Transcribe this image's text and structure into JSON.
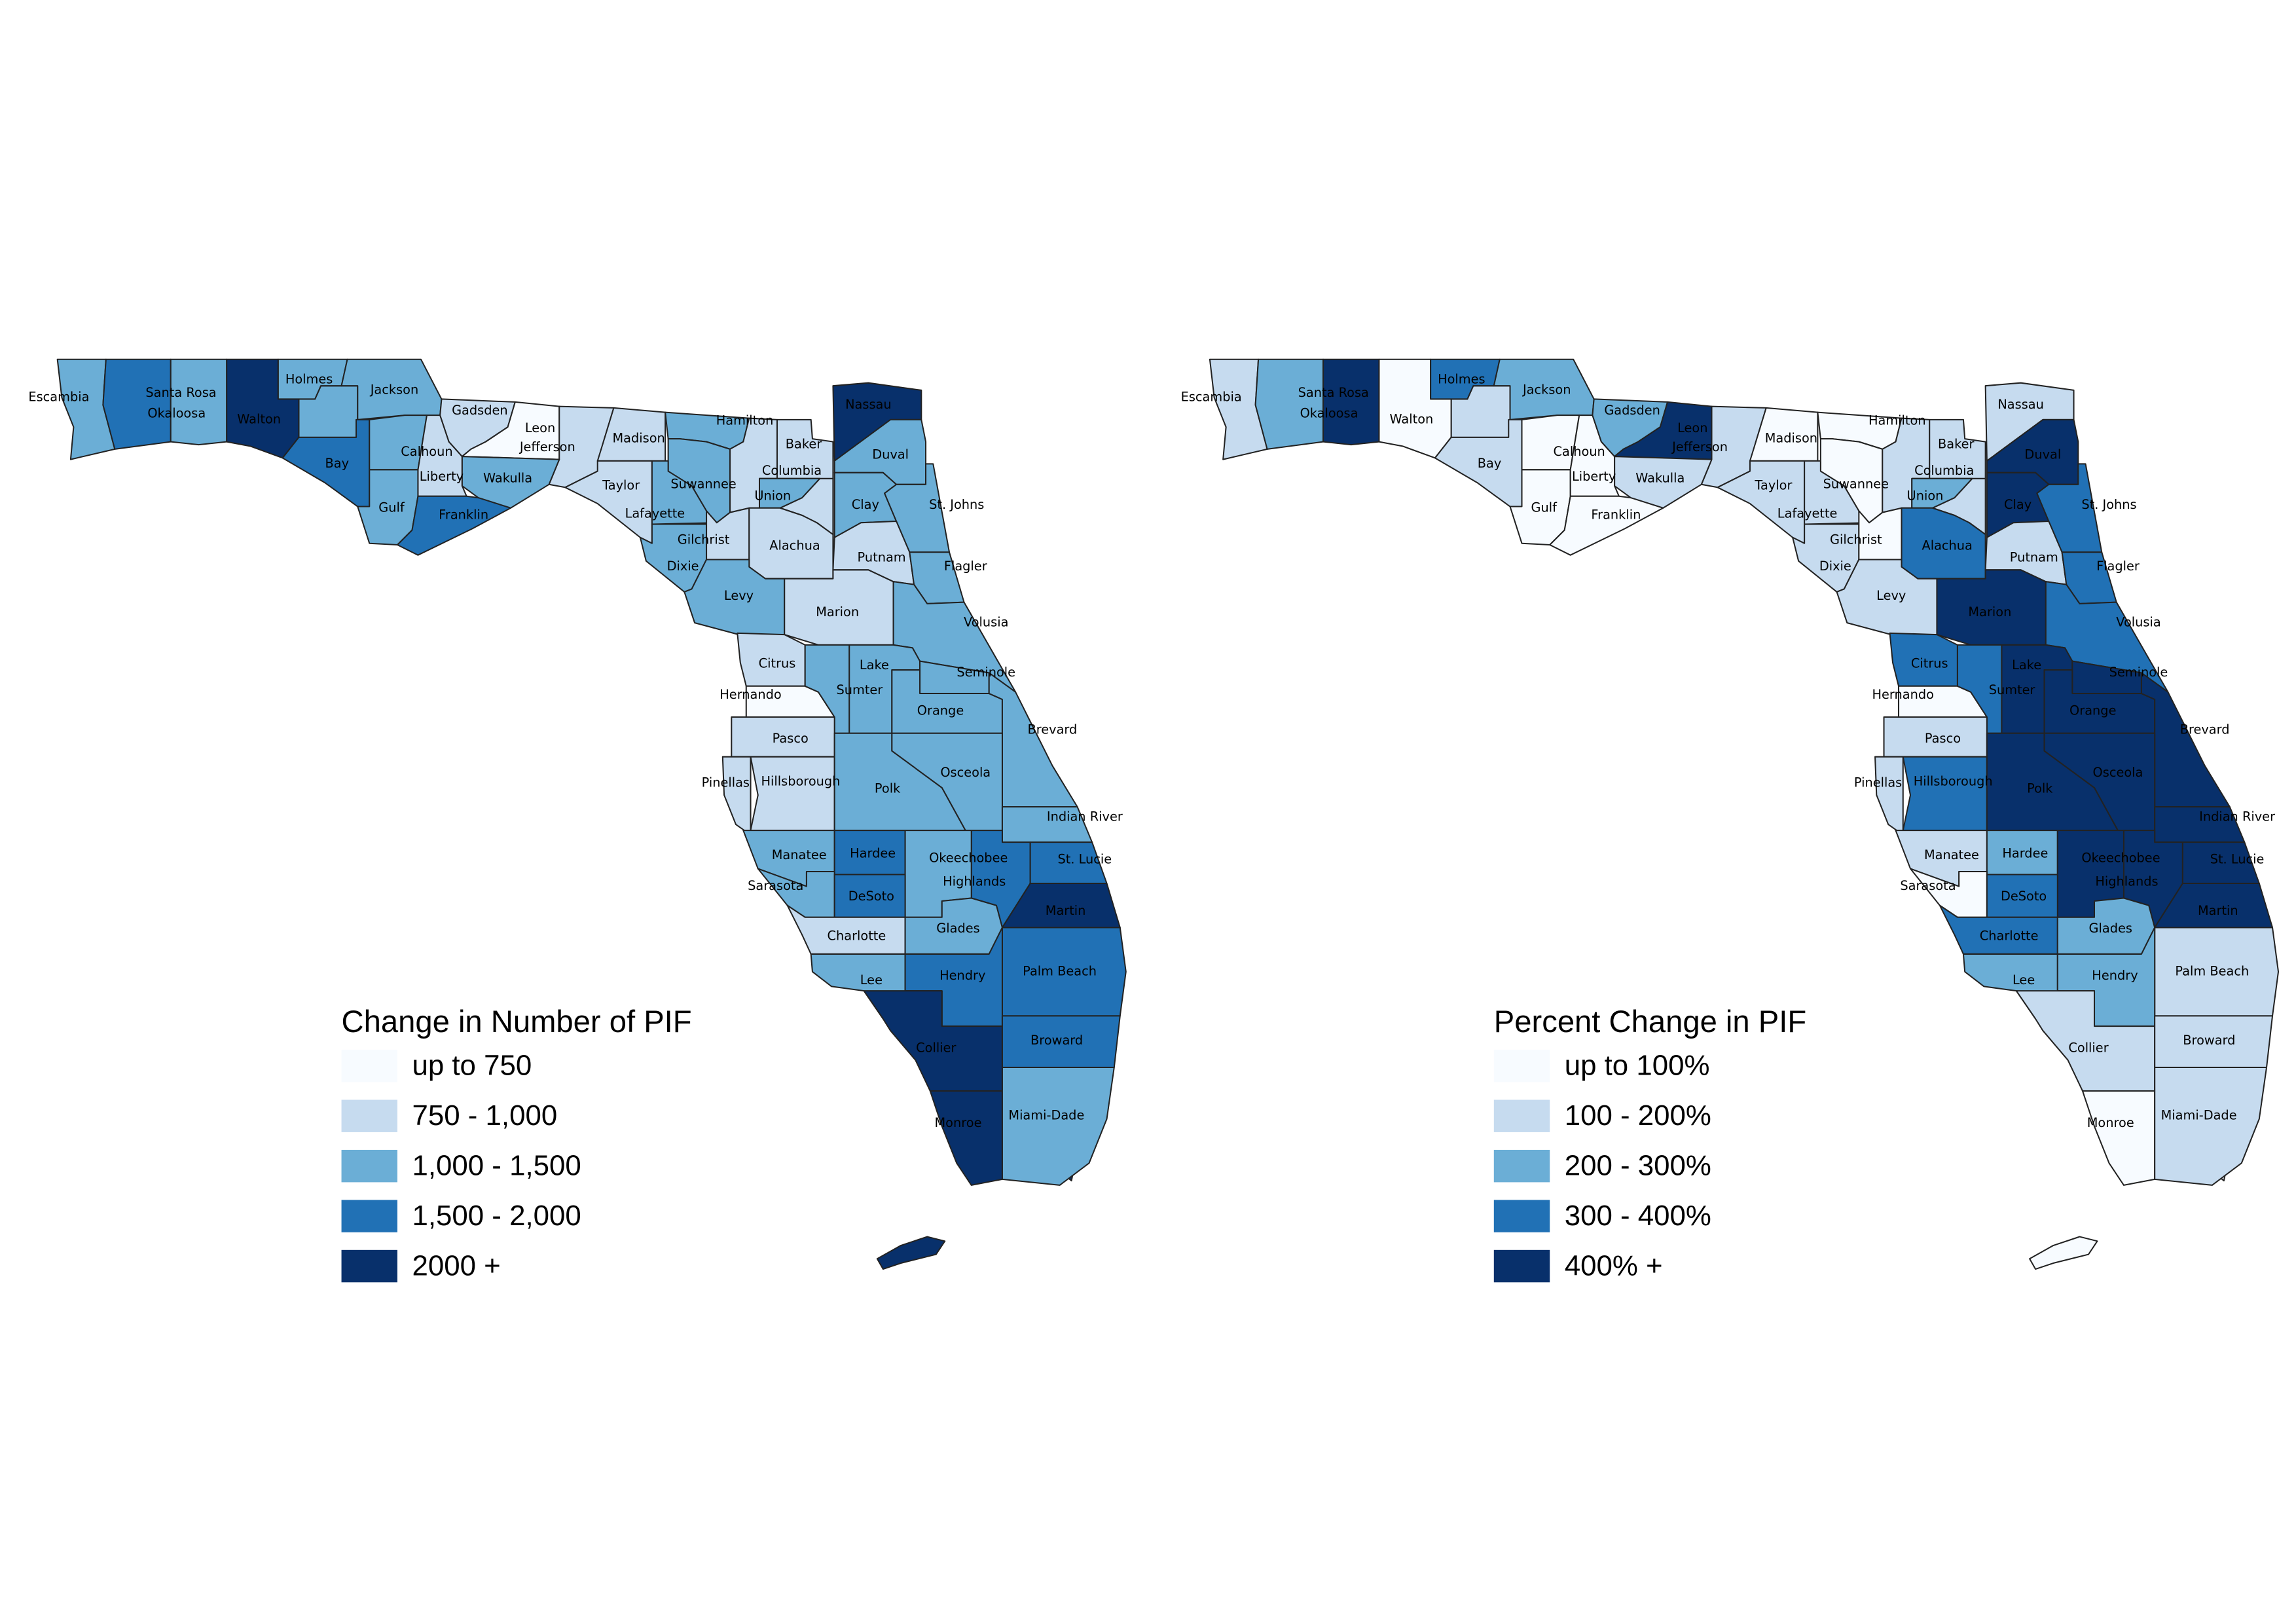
{
  "maps": [
    {
      "legend": {
        "title": "Change in Number of PIF",
        "classes": [
          {
            "label": "up to 750",
            "color": "#f7fbff"
          },
          {
            "label": "750 - 1,000",
            "color": "#c6dbef"
          },
          {
            "label": "1,000 - 1,500",
            "color": "#6baed6"
          },
          {
            "label": "1,500 - 2,000",
            "color": "#2171b5"
          },
          {
            "label": "2000 +",
            "color": "#08306b"
          }
        ]
      },
      "counties": [
        {
          "name": "Escambia",
          "class": 2
        },
        {
          "name": "Santa Rosa",
          "class": 3
        },
        {
          "name": "Okaloosa",
          "class": 2
        },
        {
          "name": "Walton",
          "class": 4
        },
        {
          "name": "Holmes",
          "class": 2
        },
        {
          "name": "Jackson",
          "class": 2
        },
        {
          "name": "Bay",
          "class": 3
        },
        {
          "name": "Calhoun",
          "class": 2
        },
        {
          "name": "Gulf",
          "class": 2
        },
        {
          "name": "Liberty",
          "class": 1
        },
        {
          "name": "Franklin",
          "class": 3
        },
        {
          "name": "Gadsden",
          "class": 1
        },
        {
          "name": "Leon",
          "class": 0
        },
        {
          "name": "Jefferson",
          "class": 1
        },
        {
          "name": "Wakulla",
          "class": 2
        },
        {
          "name": "Madison",
          "class": 1
        },
        {
          "name": "Taylor",
          "class": 1
        },
        {
          "name": "Hamilton",
          "class": 2
        },
        {
          "name": "Suwannee",
          "class": 2
        },
        {
          "name": "Lafayette",
          "class": 2
        },
        {
          "name": "Dixie",
          "class": 2
        },
        {
          "name": "Gilchrist",
          "class": 1
        },
        {
          "name": "Columbia",
          "class": 1
        },
        {
          "name": "Baker",
          "class": 1
        },
        {
          "name": "Union",
          "class": 2
        },
        {
          "name": "Alachua",
          "class": 1
        },
        {
          "name": "Levy",
          "class": 2
        },
        {
          "name": "Marion",
          "class": 1
        },
        {
          "name": "Nassau",
          "class": 4
        },
        {
          "name": "Duval",
          "class": 2
        },
        {
          "name": "Clay",
          "class": 2
        },
        {
          "name": "St. Johns",
          "class": 2
        },
        {
          "name": "Putnam",
          "class": 1
        },
        {
          "name": "Flagler",
          "class": 2
        },
        {
          "name": "Volusia",
          "class": 2
        },
        {
          "name": "Citrus",
          "class": 1
        },
        {
          "name": "Hernando",
          "class": 0
        },
        {
          "name": "Lake",
          "class": 2
        },
        {
          "name": "Sumter",
          "class": 2
        },
        {
          "name": "Seminole",
          "class": 2
        },
        {
          "name": "Orange",
          "class": 2
        },
        {
          "name": "Brevard",
          "class": 2
        },
        {
          "name": "Pasco",
          "class": 1
        },
        {
          "name": "Pinellas",
          "class": 1
        },
        {
          "name": "Hillsborough",
          "class": 1
        },
        {
          "name": "Polk",
          "class": 2
        },
        {
          "name": "Osceola",
          "class": 2
        },
        {
          "name": "Indian River",
          "class": 2
        },
        {
          "name": "Manatee",
          "class": 2
        },
        {
          "name": "Hardee",
          "class": 3
        },
        {
          "name": "Okeechobee",
          "class": 3
        },
        {
          "name": "Highlands",
          "class": 2
        },
        {
          "name": "St. Lucie",
          "class": 3
        },
        {
          "name": "Sarasota",
          "class": 2
        },
        {
          "name": "DeSoto",
          "class": 3
        },
        {
          "name": "Martin",
          "class": 4
        },
        {
          "name": "Charlotte",
          "class": 1
        },
        {
          "name": "Glades",
          "class": 2
        },
        {
          "name": "Palm Beach",
          "class": 3
        },
        {
          "name": "Lee",
          "class": 2
        },
        {
          "name": "Hendry",
          "class": 3
        },
        {
          "name": "Collier",
          "class": 4
        },
        {
          "name": "Broward",
          "class": 3
        },
        {
          "name": "Monroe",
          "class": 4
        },
        {
          "name": "Miami-Dade",
          "class": 2
        }
      ],
      "unlabeled_classes": [
        2,
        1
      ]
    },
    {
      "legend": {
        "title": "Percent Change in PIF",
        "classes": [
          {
            "label": "up to 100%",
            "color": "#f7fbff"
          },
          {
            "label": "100 - 200%",
            "color": "#c6dbef"
          },
          {
            "label": "200 - 300%",
            "color": "#6baed6"
          },
          {
            "label": "300 - 400%",
            "color": "#2171b5"
          },
          {
            "label": "400% +",
            "color": "#08306b"
          }
        ]
      },
      "counties": [
        {
          "name": "Escambia",
          "class": 1
        },
        {
          "name": "Santa Rosa",
          "class": 2
        },
        {
          "name": "Okaloosa",
          "class": 4
        },
        {
          "name": "Walton",
          "class": 0
        },
        {
          "name": "Holmes",
          "class": 3
        },
        {
          "name": "Jackson",
          "class": 2
        },
        {
          "name": "Bay",
          "class": 1
        },
        {
          "name": "Calhoun",
          "class": 0
        },
        {
          "name": "Gulf",
          "class": 0
        },
        {
          "name": "Liberty",
          "class": 0
        },
        {
          "name": "Franklin",
          "class": 0
        },
        {
          "name": "Gadsden",
          "class": 2
        },
        {
          "name": "Leon",
          "class": 4
        },
        {
          "name": "Jefferson",
          "class": 1
        },
        {
          "name": "Wakulla",
          "class": 1
        },
        {
          "name": "Madison",
          "class": 0
        },
        {
          "name": "Taylor",
          "class": 1
        },
        {
          "name": "Hamilton",
          "class": 0
        },
        {
          "name": "Suwannee",
          "class": 0
        },
        {
          "name": "Lafayette",
          "class": 1
        },
        {
          "name": "Dixie",
          "class": 1
        },
        {
          "name": "Gilchrist",
          "class": 0
        },
        {
          "name": "Columbia",
          "class": 1
        },
        {
          "name": "Baker",
          "class": 1
        },
        {
          "name": "Union",
          "class": 2
        },
        {
          "name": "Alachua",
          "class": 3
        },
        {
          "name": "Levy",
          "class": 1
        },
        {
          "name": "Marion",
          "class": 4
        },
        {
          "name": "Nassau",
          "class": 1
        },
        {
          "name": "Duval",
          "class": 4
        },
        {
          "name": "Clay",
          "class": 4
        },
        {
          "name": "St. Johns",
          "class": 3
        },
        {
          "name": "Putnam",
          "class": 1
        },
        {
          "name": "Flagler",
          "class": 3
        },
        {
          "name": "Volusia",
          "class": 3
        },
        {
          "name": "Citrus",
          "class": 3
        },
        {
          "name": "Hernando",
          "class": 0
        },
        {
          "name": "Lake",
          "class": 4
        },
        {
          "name": "Sumter",
          "class": 3
        },
        {
          "name": "Seminole",
          "class": 4
        },
        {
          "name": "Orange",
          "class": 4
        },
        {
          "name": "Brevard",
          "class": 4
        },
        {
          "name": "Pasco",
          "class": 1
        },
        {
          "name": "Pinellas",
          "class": 1
        },
        {
          "name": "Hillsborough",
          "class": 3
        },
        {
          "name": "Polk",
          "class": 4
        },
        {
          "name": "Osceola",
          "class": 4
        },
        {
          "name": "Indian River",
          "class": 4
        },
        {
          "name": "Manatee",
          "class": 1
        },
        {
          "name": "Hardee",
          "class": 2
        },
        {
          "name": "Okeechobee",
          "class": 4
        },
        {
          "name": "Highlands",
          "class": 4
        },
        {
          "name": "St. Lucie",
          "class": 4
        },
        {
          "name": "Sarasota",
          "class": 0
        },
        {
          "name": "DeSoto",
          "class": 3
        },
        {
          "name": "Martin",
          "class": 4
        },
        {
          "name": "Charlotte",
          "class": 3
        },
        {
          "name": "Glades",
          "class": 2
        },
        {
          "name": "Palm Beach",
          "class": 1
        },
        {
          "name": "Lee",
          "class": 2
        },
        {
          "name": "Hendry",
          "class": 2
        },
        {
          "name": "Collier",
          "class": 1
        },
        {
          "name": "Broward",
          "class": 1
        },
        {
          "name": "Monroe",
          "class": 0
        },
        {
          "name": "Miami-Dade",
          "class": 1
        }
      ],
      "unlabeled_classes": [
        1,
        1
      ]
    }
  ]
}
